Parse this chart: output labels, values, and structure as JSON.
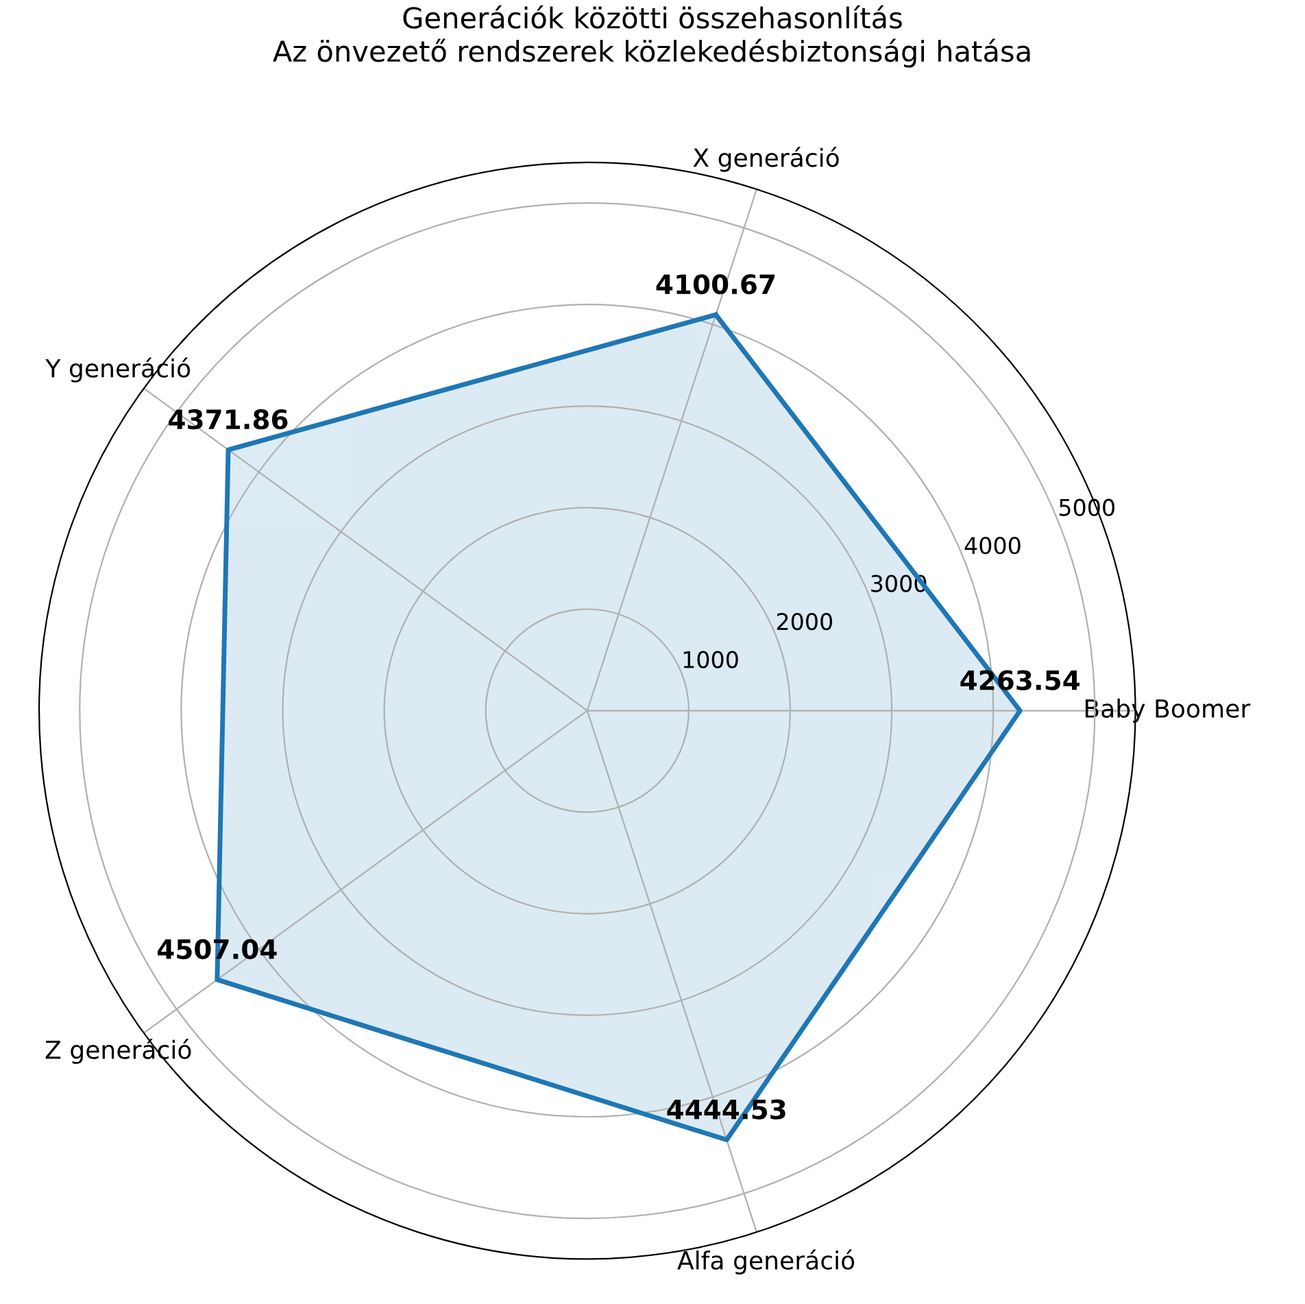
{
  "chart_data": {
    "type": "radar",
    "title": "Generációk közötti összehasonlítás\nAz önvezető rendszerek közlekedésbiztonsági hatása",
    "categories": [
      "X generáció",
      "Baby Boomer",
      "Alfa generáció",
      "Z generáció",
      "Y generáció"
    ],
    "series": [
      {
        "color": "#1f77b4",
        "values": [
          4100.67,
          4263.54,
          4444.53,
          4507.04,
          4371.86
        ]
      }
    ],
    "ylim": [
      0,
      5400
    ],
    "yticks": [
      1000,
      2000,
      3000,
      4000,
      5000
    ],
    "grid": true,
    "data_labels": true,
    "marker": "none",
    "line_style": "solid",
    "legend": false
  }
}
